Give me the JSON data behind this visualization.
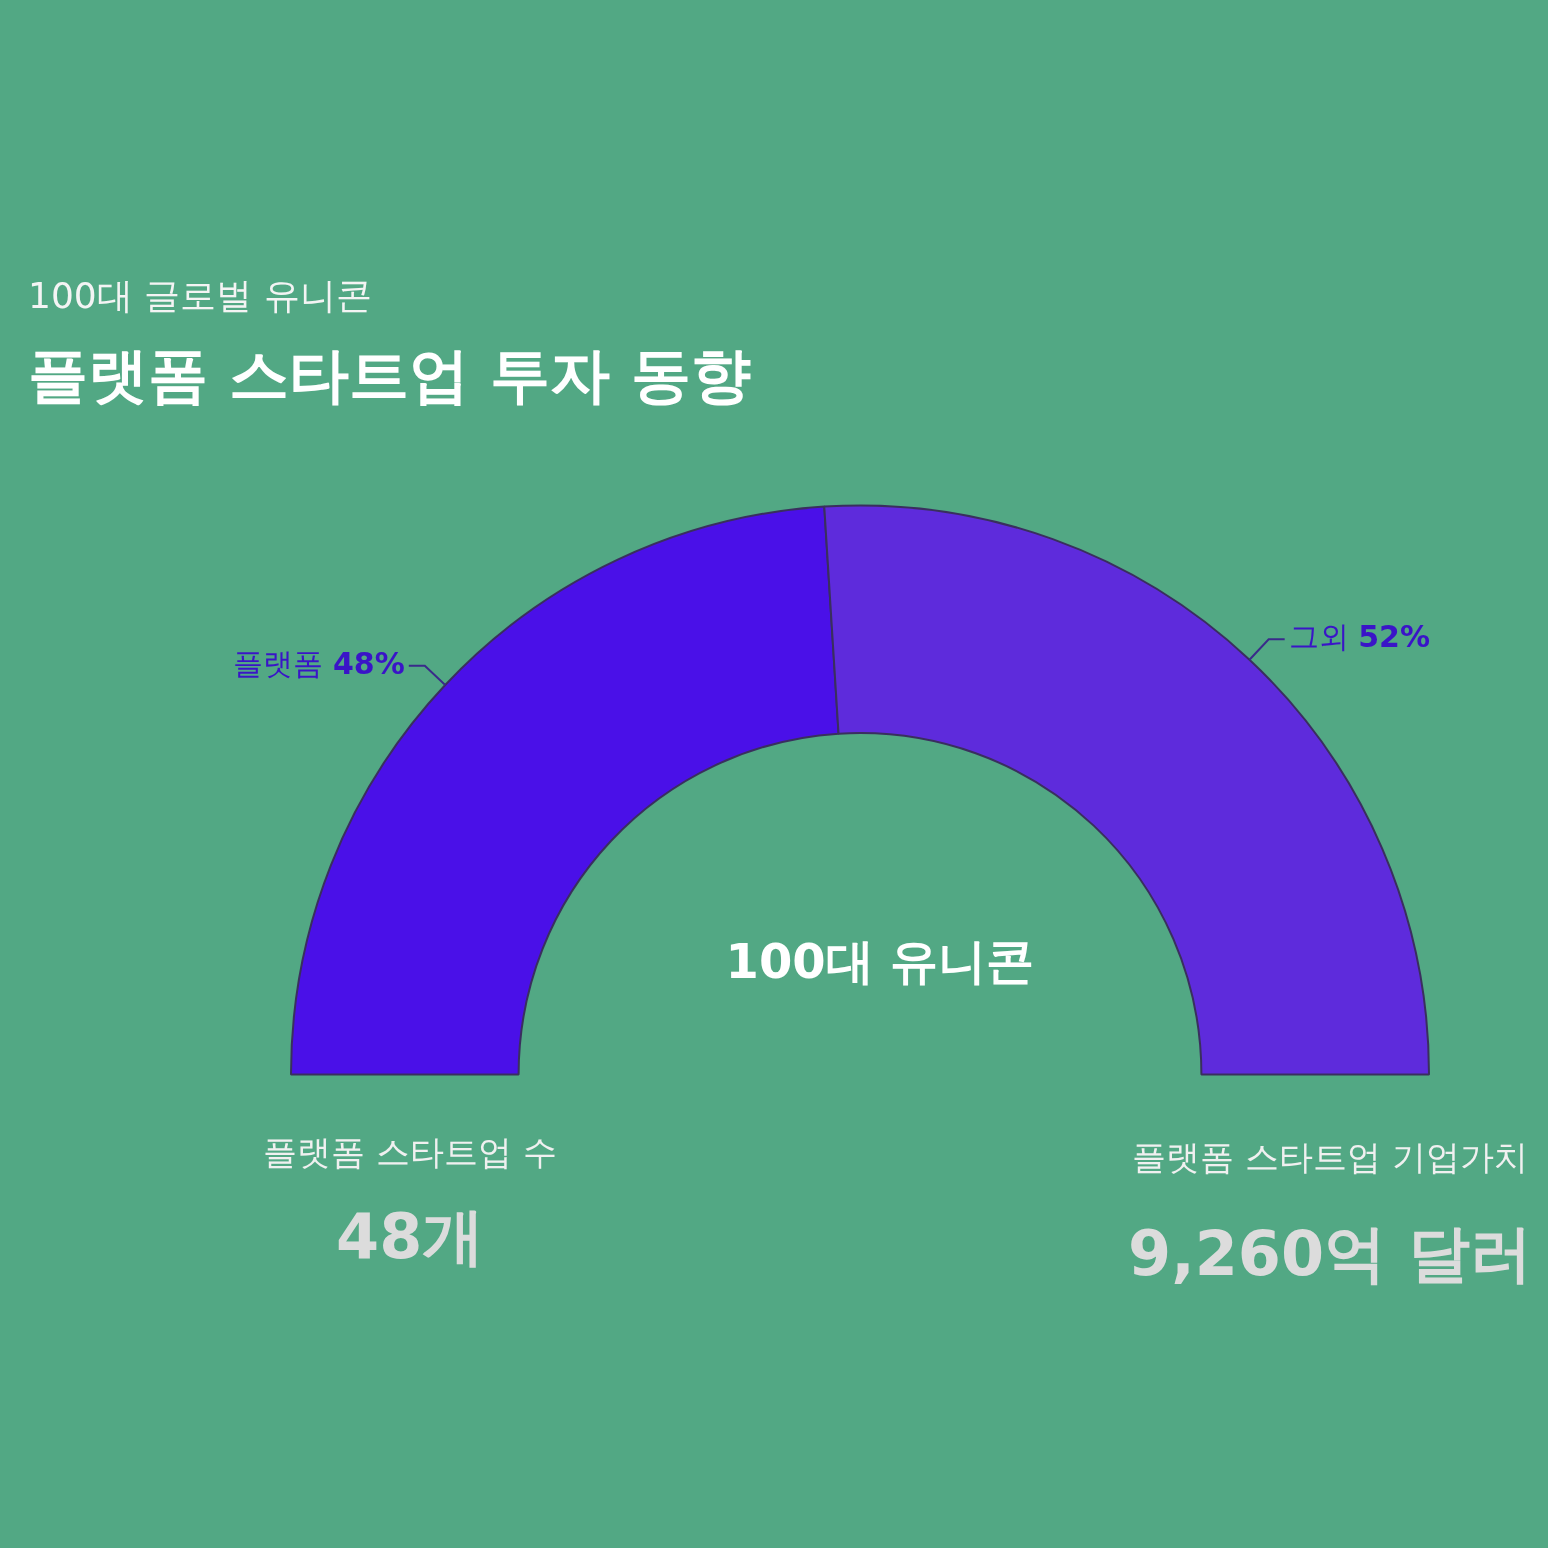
{
  "chart_data": {
    "type": "donut",
    "title": "플랫폼 스타트업 투자 동향",
    "subtitle": "100대 글로벌 유니콘",
    "categories": [
      "플랫폼",
      "그외"
    ],
    "values": [
      48,
      52
    ],
    "value_labels": [
      "48%",
      "52%"
    ],
    "colors": [
      "#4a10e8",
      "#5e2bdc"
    ],
    "annotations": [
      "100대 유니콘",
      "플랫폼 스타트업 수",
      "48개",
      "플랫폼 스타트업 기업가치",
      "9,260억 달러"
    ]
  }
}
